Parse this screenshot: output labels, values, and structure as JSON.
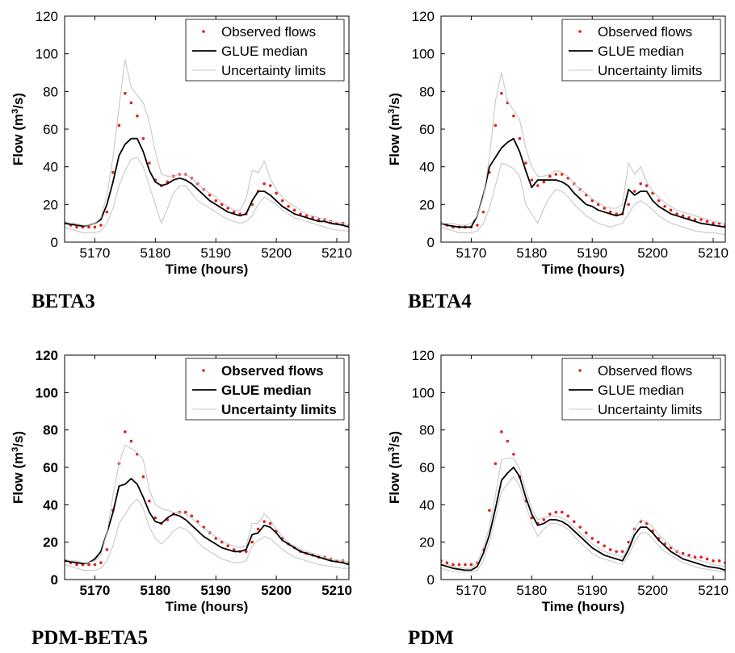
{
  "chart_data": [
    {
      "type": "line",
      "caption": "BETA3",
      "xlabel": "Time (hours)",
      "ylabel_main": "Flow (m",
      "ylabel_sup": "3",
      "ylabel_tail": "/s)",
      "xlim": [
        5165,
        5212
      ],
      "ylim": [
        0,
        120
      ],
      "xticks": [
        5170,
        5180,
        5190,
        5200,
        5210
      ],
      "yticks": [
        0,
        20,
        40,
        60,
        80,
        100,
        120
      ],
      "bold_labels": false,
      "legend_position": "top-right",
      "legend": [
        "Observed flows",
        "GLUE median",
        "Uncertainty limits"
      ],
      "x": [
        5165,
        5166,
        5167,
        5168,
        5169,
        5170,
        5171,
        5172,
        5173,
        5174,
        5175,
        5176,
        5177,
        5178,
        5179,
        5180,
        5181,
        5182,
        5183,
        5184,
        5185,
        5186,
        5187,
        5188,
        5189,
        5190,
        5191,
        5192,
        5193,
        5194,
        5195,
        5196,
        5197,
        5198,
        5199,
        5200,
        5201,
        5202,
        5203,
        5204,
        5205,
        5206,
        5207,
        5208,
        5209,
        5210,
        5211,
        5212
      ],
      "series": [
        {
          "name": "Observed flows",
          "style": "dots",
          "values": [
            10,
            9,
            8,
            8,
            8,
            8,
            9,
            16,
            37,
            62,
            79,
            74,
            67,
            55,
            42,
            33,
            30,
            32,
            35,
            36,
            36,
            34,
            31,
            28,
            25,
            22,
            20,
            18,
            16,
            15,
            15,
            20,
            27,
            31,
            30,
            26,
            22,
            19,
            17,
            15,
            14,
            13,
            12,
            12,
            11,
            10,
            10,
            9
          ]
        },
        {
          "name": "GLUE median",
          "style": "solid",
          "values": [
            10,
            9.5,
            9,
            8.5,
            9,
            10,
            12,
            20,
            32,
            46,
            52,
            55,
            55,
            48,
            38,
            32,
            30,
            31,
            33,
            34,
            33,
            31,
            28,
            25,
            22,
            20,
            18,
            16,
            15,
            14,
            15,
            22,
            27,
            27,
            25,
            22,
            19,
            17,
            15,
            14,
            13,
            12,
            11,
            11,
            10,
            9.5,
            9,
            8
          ]
        },
        {
          "name": "Uncertainty lower",
          "style": "gray",
          "values": [
            8,
            7,
            6,
            5,
            5,
            5,
            6,
            10,
            18,
            30,
            38,
            44,
            45,
            40,
            30,
            20,
            10,
            18,
            26,
            30,
            30,
            26,
            22,
            20,
            18,
            16,
            14,
            12,
            11,
            10,
            11,
            14,
            20,
            24,
            22,
            20,
            17,
            15,
            13,
            12,
            11,
            10,
            9,
            8,
            7,
            6.5,
            6,
            6
          ]
        },
        {
          "name": "Uncertainty upper",
          "style": "gray",
          "values": [
            11,
            10,
            10,
            9,
            9,
            10,
            13,
            25,
            45,
            72,
            97,
            82,
            78,
            74,
            64,
            48,
            36,
            35,
            35,
            36,
            36,
            34,
            31,
            28,
            26,
            24,
            21,
            19,
            17,
            17,
            23,
            38,
            37,
            43,
            34,
            28,
            24,
            21,
            19,
            17,
            15,
            14,
            13,
            12,
            11,
            10.5,
            10,
            9
          ]
        }
      ]
    },
    {
      "type": "line",
      "caption": "BETA4",
      "xlabel": "Time (hours)",
      "ylabel_main": "Flow (m",
      "ylabel_sup": "3",
      "ylabel_tail": "/s)",
      "xlim": [
        5165,
        5212
      ],
      "ylim": [
        0,
        120
      ],
      "xticks": [
        5170,
        5180,
        5190,
        5200,
        5210
      ],
      "yticks": [
        0,
        20,
        40,
        60,
        80,
        100,
        120
      ],
      "bold_labels": false,
      "legend_position": "top-right",
      "legend": [
        "Observed flows",
        "GLUE median",
        "Uncertainty limits"
      ],
      "x": [
        5165,
        5166,
        5167,
        5168,
        5169,
        5170,
        5171,
        5172,
        5173,
        5174,
        5175,
        5176,
        5177,
        5178,
        5179,
        5180,
        5181,
        5182,
        5183,
        5184,
        5185,
        5186,
        5187,
        5188,
        5189,
        5190,
        5191,
        5192,
        5193,
        5194,
        5195,
        5196,
        5197,
        5198,
        5199,
        5200,
        5201,
        5202,
        5203,
        5204,
        5205,
        5206,
        5207,
        5208,
        5209,
        5210,
        5211,
        5212
      ],
      "series": [
        {
          "name": "Observed flows",
          "style": "dots",
          "values": [
            10,
            9,
            8,
            8,
            8,
            8,
            9,
            16,
            37,
            62,
            79,
            74,
            67,
            55,
            42,
            33,
            30,
            32,
            35,
            36,
            36,
            34,
            31,
            28,
            25,
            22,
            20,
            18,
            16,
            15,
            15,
            20,
            27,
            31,
            30,
            26,
            22,
            19,
            17,
            15,
            14,
            13,
            12,
            12,
            11,
            10,
            10,
            9
          ]
        },
        {
          "name": "GLUE median",
          "style": "solid",
          "values": [
            10,
            9,
            8.5,
            8,
            8,
            8,
            14,
            25,
            40,
            45,
            50,
            53,
            55,
            48,
            38,
            29,
            33,
            33,
            33,
            33,
            32,
            30,
            26,
            23,
            20,
            19,
            17,
            16,
            15,
            14,
            15,
            28,
            25,
            27,
            27,
            22,
            19,
            17,
            15,
            14,
            13,
            12,
            11,
            10,
            9.5,
            9,
            8.5,
            8
          ]
        },
        {
          "name": "Uncertainty lower",
          "style": "gray",
          "values": [
            8,
            7,
            6,
            5,
            5,
            5,
            6,
            10,
            18,
            30,
            42,
            41,
            39,
            35,
            20,
            15,
            10,
            18,
            24,
            28,
            27,
            24,
            20,
            17,
            14,
            12,
            10,
            9,
            8,
            9,
            10,
            15,
            20,
            22,
            20,
            17,
            14,
            12,
            10,
            9,
            8,
            7,
            6,
            5.5,
            5,
            5,
            4.5,
            4
          ]
        },
        {
          "name": "Uncertainty upper",
          "style": "gray",
          "values": [
            10,
            10,
            10,
            9,
            9,
            10,
            14,
            24,
            45,
            75,
            90,
            75,
            70,
            65,
            50,
            40,
            35,
            35,
            36,
            38,
            37,
            35,
            31,
            28,
            26,
            23,
            21,
            19,
            18,
            18,
            20,
            42,
            36,
            40,
            32,
            27,
            24,
            21,
            19,
            17,
            16,
            15,
            14,
            13,
            12,
            11,
            10.5,
            10
          ]
        }
      ]
    },
    {
      "type": "line",
      "caption": "PDM-BETA5",
      "xlabel": "Time (hours)",
      "ylabel_main": "Flow (m",
      "ylabel_sup": "3",
      "ylabel_tail": "/s)",
      "xlim": [
        5165,
        5212
      ],
      "ylim": [
        0,
        120
      ],
      "xticks": [
        5170,
        5180,
        5190,
        5200,
        5210
      ],
      "yticks": [
        0,
        20,
        40,
        60,
        80,
        100,
        120
      ],
      "bold_labels": true,
      "legend_position": "top-right",
      "legend": [
        "Observed flows",
        "GLUE median",
        "Uncertainty limits"
      ],
      "x": [
        5165,
        5166,
        5167,
        5168,
        5169,
        5170,
        5171,
        5172,
        5173,
        5174,
        5175,
        5176,
        5177,
        5178,
        5179,
        5180,
        5181,
        5182,
        5183,
        5184,
        5185,
        5186,
        5187,
        5188,
        5189,
        5190,
        5191,
        5192,
        5193,
        5194,
        5195,
        5196,
        5197,
        5198,
        5199,
        5200,
        5201,
        5202,
        5203,
        5204,
        5205,
        5206,
        5207,
        5208,
        5209,
        5210,
        5211,
        5212
      ],
      "series": [
        {
          "name": "Observed flows",
          "style": "dots",
          "values": [
            10,
            9,
            8,
            8,
            8,
            8,
            9,
            16,
            37,
            62,
            79,
            74,
            67,
            55,
            42,
            33,
            30,
            32,
            35,
            36,
            36,
            34,
            31,
            28,
            25,
            22,
            20,
            18,
            16,
            15,
            15,
            20,
            27,
            31,
            30,
            26,
            22,
            19,
            17,
            15,
            14,
            13,
            12,
            12,
            11,
            10,
            10,
            9
          ]
        },
        {
          "name": "GLUE median",
          "style": "solid",
          "values": [
            10,
            9.5,
            9,
            8.5,
            9,
            11,
            15,
            25,
            36,
            50,
            51,
            54,
            51,
            44,
            36,
            31,
            30,
            33,
            35,
            34,
            32,
            29,
            26,
            23,
            21,
            19,
            17,
            16,
            15,
            15,
            16,
            24,
            25,
            29,
            28,
            25,
            21,
            19,
            17,
            15,
            14,
            13,
            12,
            11,
            10,
            9.5,
            9,
            8
          ]
        },
        {
          "name": "Uncertainty lower",
          "style": "gray",
          "values": [
            8,
            7,
            6,
            5,
            5,
            5,
            6,
            10,
            18,
            30,
            35,
            40,
            43,
            38,
            28,
            22,
            19,
            22,
            26,
            28,
            27,
            24,
            20,
            17,
            15,
            13,
            11,
            10,
            9,
            9,
            10,
            18,
            21,
            23,
            22,
            19,
            16,
            14,
            12,
            11,
            10,
            9,
            8,
            7.5,
            7,
            6.5,
            6,
            6
          ]
        },
        {
          "name": "Uncertainty upper",
          "style": "gray",
          "values": [
            11,
            10,
            10,
            9,
            9,
            10,
            13,
            25,
            45,
            62,
            72,
            70,
            68,
            64,
            48,
            40,
            38,
            37,
            36,
            36,
            35,
            33,
            30,
            27,
            25,
            23,
            21,
            19,
            18,
            17,
            18,
            30,
            30,
            35,
            32,
            27,
            23,
            20,
            18,
            16,
            15,
            14,
            13,
            12,
            11,
            10.5,
            10,
            9
          ]
        }
      ]
    },
    {
      "type": "line",
      "caption": "PDM",
      "xlabel": "Time (hours)",
      "ylabel_main": "Flow (m",
      "ylabel_sup": "3",
      "ylabel_tail": "/s)",
      "xlim": [
        5165,
        5212
      ],
      "ylim": [
        0,
        120
      ],
      "xticks": [
        5170,
        5180,
        5190,
        5200,
        5210
      ],
      "yticks": [
        0,
        20,
        40,
        60,
        80,
        100,
        120
      ],
      "bold_labels": false,
      "legend_position": "top-right",
      "legend": [
        "Observed flows",
        "GLUE median",
        "Uncertainty limits"
      ],
      "x": [
        5165,
        5166,
        5167,
        5168,
        5169,
        5170,
        5171,
        5172,
        5173,
        5174,
        5175,
        5176,
        5177,
        5178,
        5179,
        5180,
        5181,
        5182,
        5183,
        5184,
        5185,
        5186,
        5187,
        5188,
        5189,
        5190,
        5191,
        5192,
        5193,
        5194,
        5195,
        5196,
        5197,
        5198,
        5199,
        5200,
        5201,
        5202,
        5203,
        5204,
        5205,
        5206,
        5207,
        5208,
        5209,
        5210,
        5211,
        5212
      ],
      "series": [
        {
          "name": "Observed flows",
          "style": "dots",
          "values": [
            10,
            9,
            8,
            8,
            8,
            8,
            9,
            16,
            37,
            62,
            79,
            74,
            67,
            55,
            42,
            33,
            30,
            32,
            35,
            36,
            36,
            34,
            31,
            28,
            25,
            22,
            20,
            18,
            16,
            15,
            15,
            20,
            27,
            31,
            30,
            26,
            22,
            19,
            17,
            15,
            14,
            13,
            12,
            12,
            11,
            10,
            10,
            9
          ]
        },
        {
          "name": "GLUE median",
          "style": "solid",
          "values": [
            8,
            7,
            6,
            5.5,
            5,
            5,
            7,
            14,
            24,
            38,
            53,
            57,
            60,
            55,
            44,
            35,
            29,
            30,
            32,
            32,
            31,
            29,
            26,
            23,
            20,
            17,
            15,
            13,
            12,
            11,
            10,
            16,
            24,
            28,
            28,
            25,
            21,
            18,
            15,
            13,
            11,
            10,
            9,
            8,
            7,
            6.5,
            6,
            5
          ]
        },
        {
          "name": "Uncertainty lower",
          "style": "gray",
          "values": [
            6,
            5,
            4.5,
            4,
            4,
            4,
            5,
            10,
            20,
            33,
            47,
            51,
            55,
            50,
            40,
            30,
            23,
            27,
            30,
            30,
            29,
            27,
            23,
            20,
            17,
            14,
            12,
            11,
            10,
            9,
            8,
            13,
            20,
            25,
            25,
            22,
            18,
            15,
            13,
            11,
            9,
            8,
            7,
            6,
            5.5,
            5,
            4.5,
            4
          ]
        },
        {
          "name": "Uncertainty upper",
          "style": "gray",
          "values": [
            9,
            8,
            7,
            6.5,
            6,
            6,
            9,
            17,
            28,
            45,
            64,
            65,
            65,
            59,
            48,
            38,
            32,
            33,
            34,
            34,
            33,
            31,
            28,
            25,
            22,
            19,
            17,
            15,
            14,
            13,
            12,
            18,
            27,
            32,
            31,
            28,
            24,
            21,
            18,
            15,
            13,
            12,
            11,
            10,
            9,
            8,
            7.5,
            7
          ]
        }
      ]
    }
  ],
  "colors": {
    "observed": "#e02020",
    "median": "#000000",
    "uncertainty": "#c8c8c8",
    "axis": "#000000"
  }
}
